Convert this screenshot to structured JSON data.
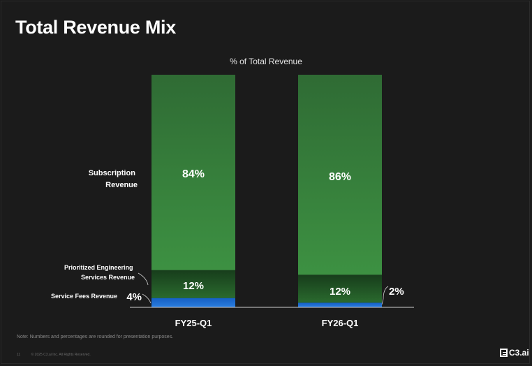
{
  "slide": {
    "title": "Total Revenue Mix",
    "note": "Note: Numbers and percentages are rounded for presentation purposes.",
    "page_number": "11",
    "copyright": "© 2025 C3.ai Inc. All Rights Reserved.",
    "logo_text": "C3.ai"
  },
  "chart_data": {
    "type": "bar",
    "stacked": true,
    "title": "% of Total Revenue",
    "categories": [
      "FY25-Q1",
      "FY26-Q1"
    ],
    "series": [
      {
        "name": "Service Fees Revenue",
        "values": [
          4,
          2
        ],
        "labels": [
          "4%",
          "2%"
        ],
        "color": "#1f6fd0"
      },
      {
        "name": "Prioritized Engineering Services Revenue",
        "values": [
          12,
          12
        ],
        "labels": [
          "12%",
          "12%"
        ],
        "color": "#205a25"
      },
      {
        "name": "Subscription Revenue",
        "values": [
          84,
          86
        ],
        "labels": [
          "84%",
          "86%"
        ],
        "color": "#3a8a3f"
      }
    ],
    "ylim": [
      0,
      100
    ],
    "legend_labels": {
      "subscription": [
        "Subscription",
        "Revenue"
      ],
      "prioritized": [
        "Prioritized Engineering",
        "Services Revenue"
      ],
      "service_fees": "Service Fees Revenue"
    }
  }
}
